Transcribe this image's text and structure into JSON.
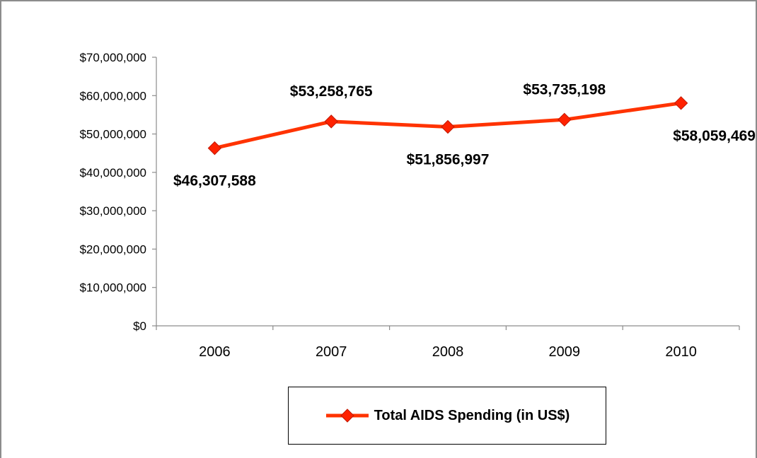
{
  "chart_data": {
    "type": "line",
    "categories": [
      "2006",
      "2007",
      "2008",
      "2009",
      "2010"
    ],
    "series": [
      {
        "name": "Total AIDS Spending (in US$)",
        "values": [
          46307588,
          53258765,
          51856997,
          53735198,
          58059469
        ],
        "labels": [
          "$46,307,588",
          "$53,258,765",
          "$51,856,997",
          "$53,735,198",
          "$58,059,469"
        ],
        "label_positions": [
          "below",
          "above",
          "below",
          "above",
          "below"
        ]
      }
    ],
    "y_ticks": [
      0,
      10000000,
      20000000,
      30000000,
      40000000,
      50000000,
      60000000,
      70000000
    ],
    "y_tick_labels": [
      "$0",
      "$10,000,000",
      "$20,000,000",
      "$30,000,000",
      "$40,000,000",
      "$50,000,000",
      "$60,000,000",
      "$70,000,000"
    ],
    "ylim": [
      0,
      70000000
    ],
    "grid": false,
    "legend_position": "bottom",
    "colors": {
      "line": "#ff3300",
      "marker_fill": "#ff2200",
      "marker_stroke": "#c01800",
      "axis": "#8c8c8c"
    }
  }
}
